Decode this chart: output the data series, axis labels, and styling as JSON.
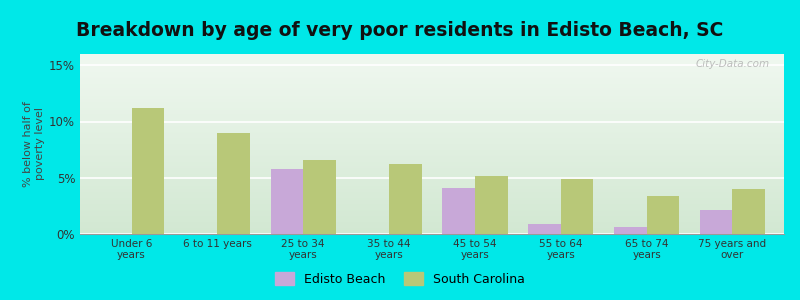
{
  "title": "Breakdown by age of very poor residents in Edisto Beach, SC",
  "categories": [
    "Under 6\nyears",
    "6 to 11 years",
    "25 to 34\nyears",
    "35 to 44\nyears",
    "45 to 54\nyears",
    "55 to 64\nyears",
    "65 to 74\nyears",
    "75 years and\nover"
  ],
  "edisto_beach": [
    0,
    0,
    5.8,
    0,
    4.1,
    0.9,
    0.65,
    2.1
  ],
  "south_carolina": [
    11.2,
    9.0,
    6.6,
    6.2,
    5.2,
    4.9,
    3.4,
    4.0
  ],
  "edisto_color": "#c8a8d8",
  "sc_color": "#b8c878",
  "ylabel": "% below half of\npoverty level",
  "ylim": [
    0,
    16
  ],
  "yticks": [
    0,
    5,
    10,
    15
  ],
  "ytick_labels": [
    "0%",
    "5%",
    "10%",
    "15%"
  ],
  "outer_background": "#00e8e8",
  "watermark": "City-Data.com",
  "title_fontsize": 13.5,
  "bar_width": 0.38
}
